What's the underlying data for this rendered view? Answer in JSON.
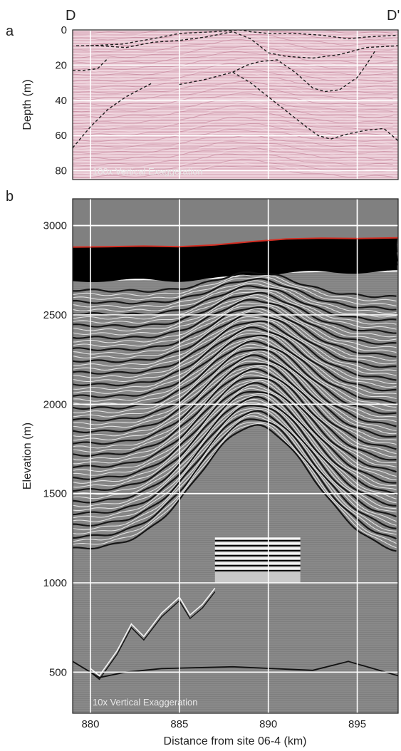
{
  "figure": {
    "corner_left": "D",
    "corner_right": "D'"
  },
  "chart_data": [
    {
      "type": "line",
      "panel_label": "a",
      "ylabel": "Depth (m)",
      "annotation": "100x Vertical Exaggeration",
      "ylim": [
        85,
        0
      ],
      "xlim": [
        879,
        897.3
      ],
      "y_ticks": [
        "0",
        "20",
        "40",
        "60",
        "80"
      ],
      "grid": true,
      "background": "#e9c9d3",
      "series": [
        {
          "x": [
            880.0,
            881.8,
            883.5,
            885.0,
            887.0,
            888.4,
            889.0,
            890.0,
            891.5,
            893.0,
            894.5,
            895.5,
            897.3
          ],
          "y": [
            9,
            8,
            5,
            2,
            1,
            0,
            1,
            2,
            2,
            3,
            5,
            4,
            3
          ]
        },
        {
          "x": [
            879.2,
            880.5,
            882.0,
            883.5,
            885.0,
            886.5,
            888.0,
            889.0,
            890.0,
            891.0,
            892.5,
            894.0,
            895.5,
            897.3
          ],
          "y": [
            9,
            9,
            10,
            7,
            6,
            4,
            1,
            5,
            13,
            15,
            16,
            14,
            10,
            9
          ]
        },
        {
          "x": [
            879.0,
            879.6,
            880.4,
            881.0
          ],
          "y": [
            23,
            23,
            22,
            16
          ]
        },
        {
          "x": [
            879.0,
            880.0,
            881.0,
            882.0,
            883.5
          ],
          "y": [
            67,
            55,
            45,
            38,
            30
          ]
        },
        {
          "x": [
            885.0,
            886.5,
            888.0,
            888.8,
            889.5,
            890.5,
            891.5,
            892.5,
            893.2,
            894.0,
            895.0,
            895.5,
            896.0
          ],
          "y": [
            31,
            28,
            24,
            20,
            18,
            17,
            24,
            33,
            35,
            34,
            27,
            20,
            12
          ]
        },
        {
          "x": [
            888.0,
            889.0,
            890.0,
            891.0,
            892.0,
            892.8,
            893.5,
            894.5,
            895.5,
            896.5,
            897.3
          ],
          "y": [
            24,
            30,
            38,
            46,
            54,
            60,
            62,
            59,
            57,
            56,
            63
          ]
        }
      ]
    },
    {
      "type": "line",
      "panel_label": "b",
      "xlabel": "Distance from site 06-4 (km)",
      "ylabel": "Elevation (m)",
      "annotation": "10x Vertical Exaggeration",
      "xlim": [
        879,
        897.3
      ],
      "ylim": [
        270,
        3150
      ],
      "x_ticks": [
        "880",
        "885",
        "890",
        "895"
      ],
      "y_ticks": [
        "3000",
        "2500",
        "2000",
        "1500",
        "1000",
        "500"
      ],
      "grid": true,
      "background": "#808080",
      "series": [
        {
          "name": "",
          "color": "#d42d22",
          "x": [
            879,
            881,
            883,
            885,
            887,
            889,
            891,
            893,
            895,
            897.3
          ],
          "y": [
            2880,
            2882,
            2885,
            2882,
            2892,
            2910,
            2925,
            2930,
            2928,
            2932
          ]
        }
      ],
      "body": {
        "reflector_top": [
          2850,
          2840,
          2820,
          2800,
          2770,
          2740,
          2720,
          2700,
          2690,
          2680
        ],
        "reflector_x": [
          879,
          881,
          883,
          885,
          887,
          889,
          891,
          893,
          895,
          897.3
        ],
        "block_x": [
          887,
          891.8
        ],
        "block_y": [
          1000,
          1250
        ]
      }
    }
  ]
}
